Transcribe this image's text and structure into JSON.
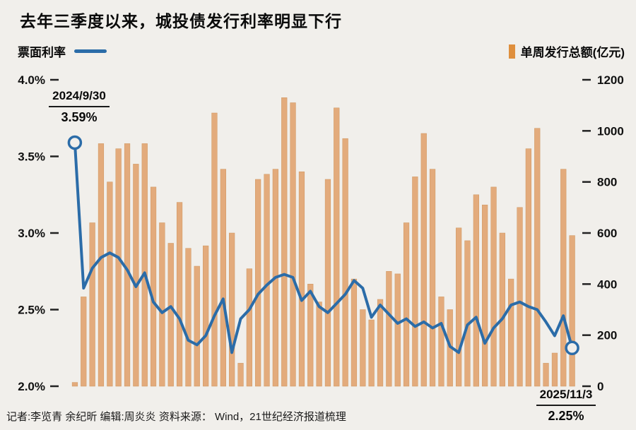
{
  "title": "去年三季度以来，城投债发行利率明显下行",
  "legend": {
    "line_label": "票面利率",
    "bar_label": "单周发行总额(亿元)"
  },
  "annotations": {
    "start": {
      "date": "2024/9/30",
      "value": "3.59%"
    },
    "end": {
      "date": "2025/11/3",
      "value": "2.25%"
    }
  },
  "footer": "记者:李览青 余纪昕  编辑:周炎炎  资料来源： Wind，21世纪经济报道梳理",
  "chart_data": {
    "type": "combo",
    "x": {
      "start": "2024/9/30",
      "end": "2025/11/3",
      "frequency": "weekly",
      "points": 58
    },
    "left_axis": {
      "title": "票面利率",
      "unit": "%",
      "min": 2.0,
      "max": 4.0,
      "ticks": [
        {
          "value": 4.0,
          "label": "4.0%"
        },
        {
          "value": 3.5,
          "label": "3.5%"
        },
        {
          "value": 3.0,
          "label": "3.0%"
        },
        {
          "value": 2.5,
          "label": "2.5%"
        },
        {
          "value": 2.0,
          "label": "2.0%"
        }
      ]
    },
    "right_axis": {
      "title": "单周发行总额",
      "unit": "亿元",
      "min": 0,
      "max": 1200,
      "ticks": [
        {
          "value": 1200,
          "label": "1200"
        },
        {
          "value": 1000,
          "label": "1000"
        },
        {
          "value": 800,
          "label": "800"
        },
        {
          "value": 600,
          "label": "600"
        },
        {
          "value": 400,
          "label": "400"
        },
        {
          "value": 200,
          "label": "200"
        },
        {
          "value": 0,
          "label": "0"
        }
      ]
    },
    "series": [
      {
        "name": "票面利率",
        "type": "line",
        "axis": "left",
        "unit": "%",
        "values": [
          3.59,
          2.64,
          2.77,
          2.84,
          2.87,
          2.84,
          2.76,
          2.65,
          2.74,
          2.55,
          2.48,
          2.52,
          2.44,
          2.3,
          2.27,
          2.33,
          2.46,
          2.57,
          2.22,
          2.44,
          2.5,
          2.6,
          2.66,
          2.71,
          2.73,
          2.71,
          2.56,
          2.62,
          2.52,
          2.48,
          2.54,
          2.6,
          2.69,
          2.64,
          2.45,
          2.53,
          2.47,
          2.41,
          2.44,
          2.39,
          2.42,
          2.38,
          2.41,
          2.26,
          2.22,
          2.4,
          2.45,
          2.28,
          2.38,
          2.44,
          2.53,
          2.55,
          2.52,
          2.5,
          2.42,
          2.33,
          2.46,
          2.25
        ]
      },
      {
        "name": "单周发行总额",
        "type": "bar",
        "axis": "right",
        "unit": "亿元",
        "values": [
          15,
          350,
          640,
          950,
          800,
          930,
          950,
          870,
          950,
          780,
          640,
          560,
          720,
          540,
          470,
          550,
          1070,
          850,
          600,
          90,
          460,
          810,
          830,
          850,
          1130,
          1110,
          840,
          400,
          330,
          810,
          1090,
          970,
          420,
          300,
          260,
          340,
          450,
          440,
          640,
          820,
          990,
          850,
          350,
          300,
          620,
          570,
          750,
          710,
          780,
          600,
          420,
          700,
          930,
          1010,
          90,
          130,
          850,
          590
        ]
      }
    ],
    "grid": false,
    "legend_position": "top",
    "colors": {
      "line": "#2b6ca8",
      "bar": "#e3ab7c",
      "bar_edge": "#cf955e",
      "legend_bar": "#df8f3d",
      "background": "#f1efeb",
      "axis_text": "#111111"
    }
  }
}
